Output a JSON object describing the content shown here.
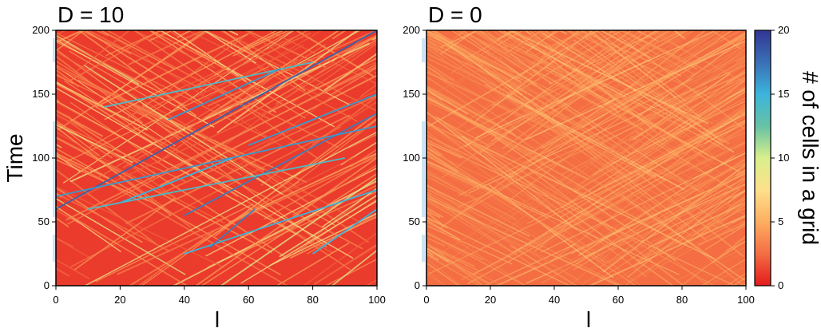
{
  "chart_data": [
    {
      "type": "heatmap",
      "title": "D = 10",
      "xlabel": "l",
      "ylabel": "Time",
      "xlim": [
        0,
        100
      ],
      "ylim": [
        0,
        200
      ],
      "x_ticks": [
        "0",
        "20",
        "40",
        "60",
        "80",
        "100"
      ],
      "y_ticks": [
        "0",
        "50",
        "100",
        "150",
        "200"
      ],
      "background_value": 1,
      "streaks": [
        {
          "t0": 60,
          "t1": 200,
          "l0": 0,
          "l1": 100,
          "value": 18
        },
        {
          "t0": 55,
          "t1": 135,
          "l0": 40,
          "l1": 100,
          "value": 17
        },
        {
          "t0": 25,
          "t1": 75,
          "l0": 40,
          "l1": 100,
          "value": 15
        },
        {
          "t0": 70,
          "t1": 125,
          "l0": 0,
          "l1": 100,
          "value": 16
        },
        {
          "t0": 60,
          "t1": 100,
          "l0": 10,
          "l1": 90,
          "value": 14
        },
        {
          "t0": 30,
          "t1": 60,
          "l0": 48,
          "l1": 62,
          "value": 17
        },
        {
          "t0": 65,
          "t1": 100,
          "l0": 20,
          "l1": 55,
          "value": 15
        },
        {
          "t0": 110,
          "t1": 150,
          "l0": 60,
          "l1": 100,
          "value": 16
        },
        {
          "t0": 140,
          "t1": 175,
          "l0": 15,
          "l1": 80,
          "value": 14
        },
        {
          "t0": 130,
          "t1": 170,
          "l0": 35,
          "l1": 70,
          "value": 16
        },
        {
          "t0": 25,
          "t1": 60,
          "l0": 80,
          "l1": 100,
          "value": 15
        }
      ]
    },
    {
      "type": "heatmap",
      "title": "D = 0",
      "xlabel": "l",
      "ylabel": "",
      "xlim": [
        0,
        100
      ],
      "ylim": [
        0,
        200
      ],
      "x_ticks": [
        "0",
        "20",
        "40",
        "60",
        "80",
        "100"
      ],
      "y_ticks": [
        "0",
        "50",
        "100",
        "150",
        "200"
      ],
      "background_value": 2.5
    }
  ],
  "colorbar": {
    "label": "# of cells in a grid",
    "range": [
      0,
      20
    ],
    "ticks": [
      "0",
      "5",
      "10",
      "15",
      "20"
    ],
    "colors": [
      "#e31a1c",
      "#f46d43",
      "#fdae61",
      "#fee08b",
      "#d9ef8b",
      "#66c2a5",
      "#3cb4dc",
      "#3a6fb5",
      "#313695"
    ]
  }
}
